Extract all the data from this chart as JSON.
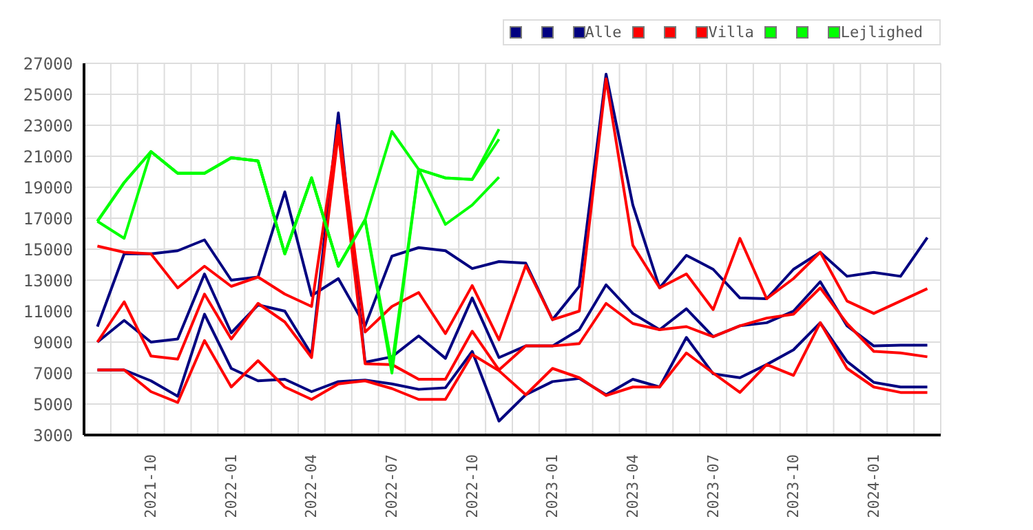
{
  "chart_data": {
    "type": "line",
    "categories": [
      null,
      null,
      "2021-10",
      null,
      null,
      "2022-01",
      null,
      null,
      "2022-04",
      null,
      null,
      "2022-07",
      null,
      null,
      "2022-10",
      null,
      null,
      "2023-01",
      null,
      null,
      "2023-04",
      null,
      null,
      "2023-07",
      null,
      null,
      "2023-10",
      null,
      null,
      "2024-01",
      null,
      null
    ],
    "series": [
      {
        "color": "#000080",
        "values": [
          10000,
          14700,
          14700,
          14900,
          15600,
          13000,
          13200,
          18700,
          12000,
          13100,
          10050,
          14550,
          15100,
          14900,
          13750,
          14200,
          14100,
          10450,
          12600,
          26300,
          17850,
          12500,
          14600,
          13700,
          11850,
          11800,
          13700,
          14800,
          13250,
          13500,
          13250,
          15750
        ]
      },
      {
        "color": "#000080",
        "values": [
          9000,
          10400,
          9000,
          9200,
          13400,
          9600,
          11400,
          11000,
          8200,
          23800,
          7700,
          8050,
          9400,
          7950,
          11850,
          8000,
          8750,
          8750,
          9800,
          12700,
          10850,
          9800,
          11150,
          9350,
          10050,
          10250,
          11000,
          12900,
          10050,
          8750,
          8800,
          8800
        ]
      },
      {
        "name": "Alle",
        "color": "#000080",
        "values": [
          7200,
          7200,
          6500,
          5500,
          10800,
          7300,
          6500,
          6600,
          5800,
          6450,
          6550,
          6300,
          5950,
          6050,
          8400,
          3900,
          5600,
          6450,
          6650,
          5600,
          6600,
          6100,
          9300,
          6950,
          6700,
          7550,
          8500,
          10250,
          7750,
          6400,
          6100,
          6100
        ]
      },
      {
        "color": "#ff0000",
        "values": [
          15200,
          14800,
          14700,
          12500,
          13900,
          12600,
          13200,
          12100,
          11300,
          23000,
          9650,
          11300,
          12200,
          9550,
          12650,
          9150,
          13950,
          10450,
          11000,
          26000,
          15250,
          12500,
          13400,
          11100,
          15700,
          11800,
          13100,
          14800,
          11650,
          10850,
          11650,
          12450
        ]
      },
      {
        "color": "#ff0000",
        "values": [
          9000,
          11600,
          8100,
          7900,
          12100,
          9200,
          11500,
          10300,
          8000,
          22500,
          7600,
          7550,
          6600,
          6600,
          9700,
          7200,
          8750,
          8750,
          8900,
          11500,
          10200,
          9800,
          10000,
          9350,
          10050,
          10550,
          10800,
          12500,
          10200,
          8400,
          8300,
          8050
        ]
      },
      {
        "name": "Villa",
        "color": "#ff0000",
        "values": [
          7200,
          7200,
          5800,
          5100,
          9100,
          6100,
          7800,
          6100,
          5300,
          6300,
          6500,
          6000,
          5300,
          5300,
          8200,
          7150,
          5600,
          7300,
          6700,
          5550,
          6100,
          6100,
          8300,
          7000,
          5750,
          7550,
          6850,
          10250,
          7300,
          6100,
          5750,
          5750
        ]
      },
      {
        "color": "#00ff00",
        "values": [
          16800,
          19300,
          21300,
          19900,
          19900,
          20900,
          20700,
          14700,
          19600,
          13900,
          16900,
          22600,
          20150,
          19600,
          19500,
          22750,
          null,
          null,
          null,
          null,
          null,
          null,
          null,
          null,
          null,
          null,
          null,
          null,
          null,
          null,
          null,
          null
        ]
      },
      {
        "color": "#00ff00",
        "values": [
          16800,
          15700,
          21300,
          19900,
          19900,
          20900,
          20700,
          14700,
          19600,
          13900,
          16900,
          7000,
          20150,
          19600,
          19500,
          22100,
          null,
          null,
          null,
          null,
          null,
          null,
          null,
          null,
          null,
          null,
          null,
          null,
          null,
          null,
          null,
          null
        ]
      },
      {
        "name": "Lejlighed",
        "color": "#00ff00",
        "values": [
          16800,
          19300,
          21300,
          19900,
          19900,
          20900,
          20700,
          14700,
          19600,
          13900,
          16900,
          7500,
          20150,
          16600,
          17850,
          19650,
          null,
          null,
          null,
          null,
          null,
          null,
          null,
          null,
          null,
          null,
          null,
          null,
          null,
          null,
          null,
          null
        ]
      }
    ],
    "ylim": [
      3000,
      27000
    ],
    "yticks": [
      3000,
      5000,
      7000,
      9000,
      11000,
      13000,
      15000,
      17000,
      19000,
      21000,
      23000,
      25000,
      27000
    ],
    "grid": true,
    "legend": "top right",
    "marker": "none",
    "line_style": "solid"
  }
}
